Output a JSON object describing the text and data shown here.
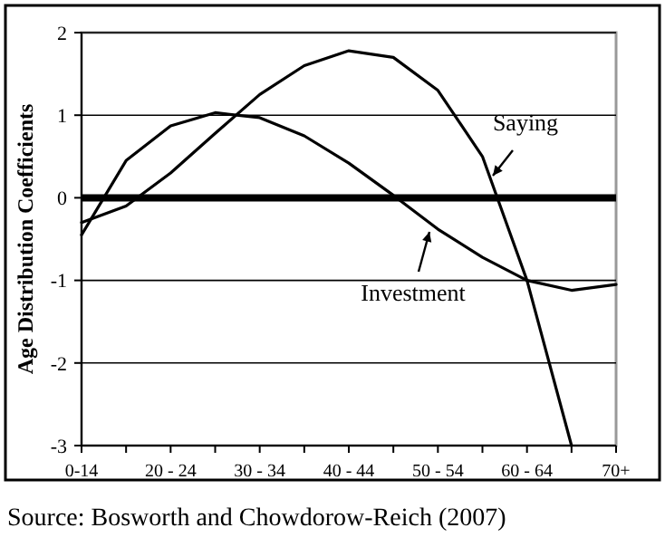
{
  "chart_data": {
    "type": "line",
    "ylabel": "Age Distribution Coefficients",
    "categories": [
      "0-14",
      null,
      "20 - 24",
      null,
      "30 - 34",
      null,
      "40 - 44",
      null,
      "50 - 54",
      null,
      "60 - 64",
      null,
      "70+"
    ],
    "series": [
      {
        "name": "Saying",
        "color": "#000000",
        "values": [
          -0.3,
          -0.1,
          0.3,
          0.78,
          1.25,
          1.6,
          1.78,
          1.7,
          1.3,
          0.5,
          -1.0,
          -3.0,
          null
        ]
      },
      {
        "name": "Investment",
        "color": "#000000",
        "values": [
          -0.45,
          0.45,
          0.87,
          1.03,
          0.97,
          0.75,
          0.42,
          0.03,
          -0.38,
          -0.72,
          -1.0,
          -1.12,
          -1.05
        ]
      }
    ],
    "ylim": [
      -3,
      2
    ],
    "yticks": [
      -3,
      -2,
      -1,
      0,
      1,
      2
    ],
    "grid": "y",
    "marker": "none",
    "line_style": "solid",
    "ref_lines": [
      {
        "axis": "y",
        "value": 0,
        "color": "#000000"
      }
    ],
    "annotations": [
      "Source: Bosworth and Chowdorow-Reich (2007)"
    ]
  }
}
